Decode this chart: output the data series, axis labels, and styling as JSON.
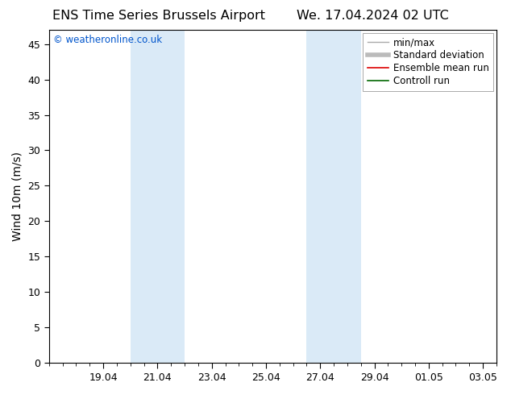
{
  "title_left": "ENS Time Series Brussels Airport",
  "title_right": "We. 17.04.2024 02 UTC",
  "ylabel": "Wind 10m (m/s)",
  "watermark": "© weatheronline.co.uk",
  "watermark_color": "#0055cc",
  "ylim": [
    0,
    47
  ],
  "yticks": [
    0,
    5,
    10,
    15,
    20,
    25,
    30,
    35,
    40,
    45
  ],
  "xtick_labels": [
    "19.04",
    "21.04",
    "23.04",
    "25.04",
    "27.04",
    "29.04",
    "01.05",
    "03.05"
  ],
  "xtick_positions": [
    2,
    4,
    6,
    8,
    10,
    12,
    14,
    16
  ],
  "x_min": 0,
  "x_max": 16.5,
  "shaded_bands": [
    {
      "x_start": 3.0,
      "x_end": 5.0
    },
    {
      "x_start": 9.5,
      "x_end": 11.5
    }
  ],
  "shaded_color": "#daeaf7",
  "legend_entries": [
    {
      "label": "min/max",
      "color": "#aaaaaa",
      "lw": 1.0
    },
    {
      "label": "Standard deviation",
      "color": "#bbbbbb",
      "lw": 4.0
    },
    {
      "label": "Ensemble mean run",
      "color": "#dd0000",
      "lw": 1.2
    },
    {
      "label": "Controll run",
      "color": "#006600",
      "lw": 1.2
    }
  ],
  "background_color": "#ffffff",
  "title_fontsize": 11.5,
  "tick_fontsize": 9,
  "legend_fontsize": 8.5,
  "watermark_fontsize": 8.5,
  "ylabel_fontsize": 10
}
